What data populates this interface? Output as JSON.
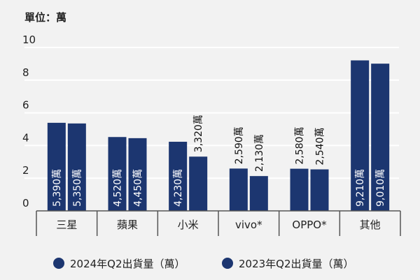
{
  "unit_label": "單位：萬",
  "colors": {
    "bar": "#1c3670",
    "grid": "#ffffff",
    "axis": "#555555",
    "background": "#f2f2f2"
  },
  "chart_data": {
    "type": "bar",
    "categories": [
      "三星",
      "蘋果",
      "小米",
      "vivo*",
      "OPPO*",
      "其他"
    ],
    "series": [
      {
        "name": "2024年Q2出貨量（萬）",
        "values": [
          5390,
          4520,
          4230,
          2590,
          2580,
          9210
        ],
        "labels": [
          "5,390萬",
          "4,520萬",
          "4,230萬",
          "2,590萬",
          "2,580萬",
          "9,210萬"
        ]
      },
      {
        "name": "2023年Q2出貨量（萬）",
        "values": [
          5350,
          4450,
          3320,
          2130,
          2540,
          9010
        ],
        "labels": [
          "5,350萬",
          "4,450萬",
          "3,320萬",
          "2,130萬",
          "2,540萬",
          "9,010萬"
        ]
      }
    ],
    "yticks": [
      0,
      2,
      4,
      6,
      8,
      10
    ],
    "ytick_scale": 1000,
    "ylim": [
      0,
      10000
    ],
    "grid": true,
    "legend_position": "bottom"
  }
}
